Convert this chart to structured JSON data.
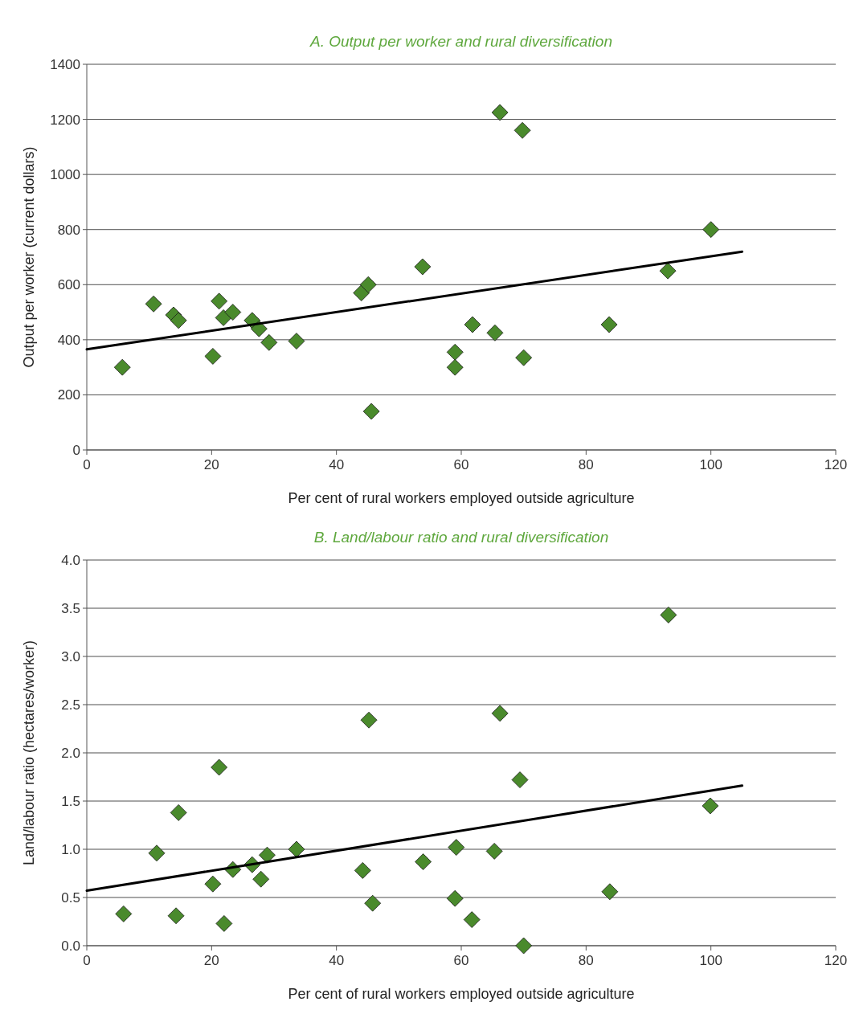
{
  "chart_data": [
    {
      "type": "scatter",
      "title": "A. Output per worker and rural diversification",
      "xlabel": "Per cent of rural workers employed outside agriculture",
      "ylabel": "Output per worker (current dollars)",
      "xlim": [
        0,
        120
      ],
      "xticks": [
        0,
        20,
        40,
        60,
        80,
        100,
        120
      ],
      "ylim": [
        0,
        1400
      ],
      "yticks": [
        0,
        200,
        400,
        600,
        800,
        1000,
        1200,
        1400
      ],
      "grid": "y",
      "marker": "diamond",
      "series": [
        {
          "color": "#4a8a2c",
          "x": [
            5.7,
            10.7,
            13.9,
            14.7,
            20.2,
            21.2,
            21.9,
            23.4,
            26.5,
            27.6,
            29.2,
            33.6,
            44.0,
            45.1,
            45.6,
            53.8,
            59.0,
            59.0,
            61.8,
            65.4,
            66.2,
            69.8,
            70.0,
            83.7,
            93.1,
            100
          ],
          "values": [
            300,
            530,
            490,
            470,
            340,
            540,
            480,
            500,
            470,
            440,
            390,
            395,
            570,
            600,
            140,
            665,
            355,
            300,
            455,
            425,
            1225,
            1160,
            335,
            455,
            650,
            800
          ]
        },
        {
          "type": "line",
          "color": "#000000",
          "marker": "none",
          "x": [
            0,
            105
          ],
          "values": [
            365,
            720
          ]
        }
      ]
    },
    {
      "type": "scatter",
      "title": "B. Land/labour ratio and rural diversification",
      "xlabel": "Per cent of rural workers employed outside agriculture",
      "ylabel": "Land/labour ratio (hectares/worker)",
      "xlim": [
        0,
        120
      ],
      "xticks": [
        0,
        20,
        40,
        60,
        80,
        100,
        120
      ],
      "ylim": [
        0,
        4
      ],
      "yticks": [
        {
          "value": 0,
          "label": "0.0"
        },
        {
          "value": 0.5,
          "label": "0.5"
        },
        {
          "value": 1,
          "label": "1.0"
        },
        {
          "value": 1.5,
          "label": "1.5"
        },
        {
          "value": 2,
          "label": "2.0"
        },
        {
          "value": 2.5,
          "label": "2.5"
        },
        {
          "value": 3,
          "label": "3.0"
        },
        {
          "value": 3.5,
          "label": "3.5"
        },
        {
          "value": 4,
          "label": "4.0"
        }
      ],
      "grid": "y",
      "marker": "diamond",
      "series": [
        {
          "color": "#4a8a2c",
          "x": [
            5.9,
            11.2,
            14.7,
            14.3,
            20.2,
            21.2,
            22.0,
            23.4,
            26.5,
            27.9,
            28.9,
            33.6,
            44.2,
            45.2,
            45.8,
            53.9,
            59.0,
            59.2,
            61.7,
            65.3,
            66.2,
            69.4,
            70.0,
            83.8,
            93.2,
            99.9
          ],
          "values": [
            0.33,
            0.96,
            1.38,
            0.31,
            0.64,
            1.85,
            0.23,
            0.79,
            0.84,
            0.69,
            0.94,
            1.0,
            0.78,
            2.34,
            0.44,
            0.87,
            0.49,
            1.02,
            0.27,
            0.98,
            2.41,
            1.72,
            0.0,
            0.56,
            3.43,
            1.45
          ]
        },
        {
          "type": "line",
          "color": "#000000",
          "marker": "none",
          "x": [
            0,
            105
          ],
          "values": [
            0.57,
            1.66
          ]
        }
      ]
    }
  ]
}
